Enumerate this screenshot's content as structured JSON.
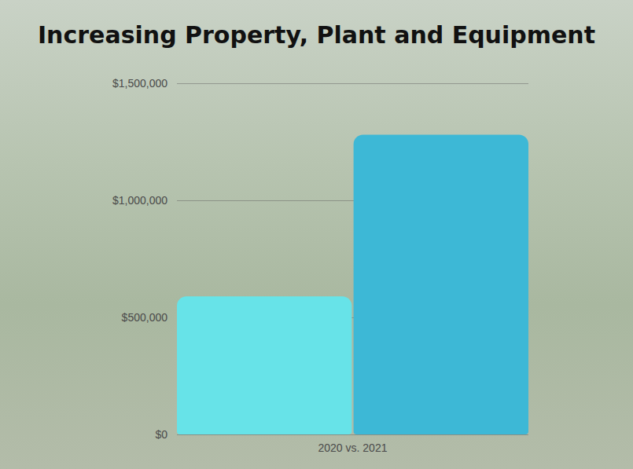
{
  "chart_data": {
    "type": "bar",
    "title": "Increasing Property, Plant and Equipment",
    "categories": [
      "2020 vs. 2021"
    ],
    "series": [
      {
        "color": "#67e3e8",
        "values": [
          590000
        ]
      },
      {
        "color": "#3db8d6",
        "values": [
          1280000
        ]
      }
    ],
    "ylim": [
      0,
      1500000
    ],
    "yticks": [
      {
        "value": 0,
        "label": "$0"
      },
      {
        "value": 500000,
        "label": "$500,000"
      },
      {
        "value": 1000000,
        "label": "$1,000,000"
      },
      {
        "value": 1500000,
        "label": "$1,500,000"
      }
    ],
    "grid": true
  }
}
